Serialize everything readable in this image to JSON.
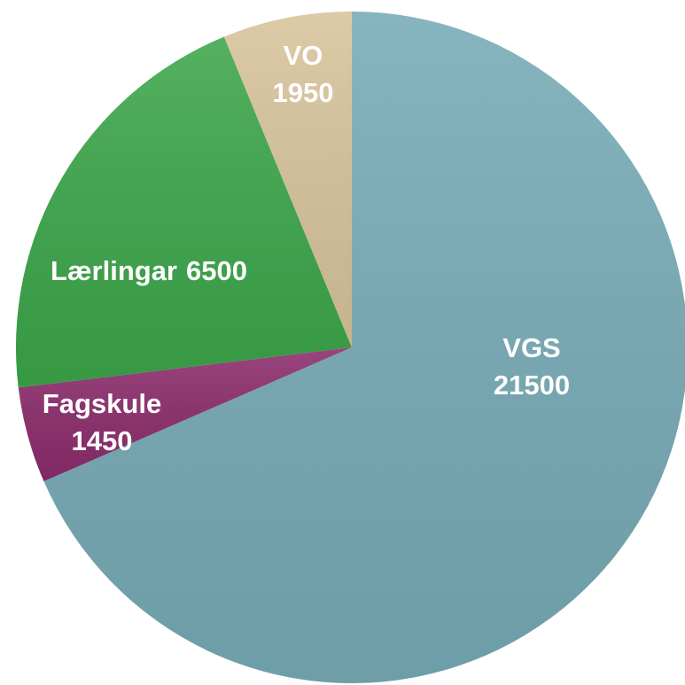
{
  "chart_data": {
    "type": "pie",
    "categories": [
      "VGS",
      "Fagskule",
      "Lærlingar",
      "VO"
    ],
    "values": [
      21500,
      1450,
      6500,
      1950
    ],
    "colors": [
      "#77abb6",
      "#8c2c6c",
      "#3ca64a",
      "#d8c49c"
    ]
  }
}
